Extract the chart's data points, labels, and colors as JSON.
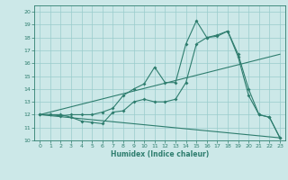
{
  "xlabel": "Humidex (Indice chaleur)",
  "xlim": [
    -0.5,
    23.5
  ],
  "ylim": [
    10,
    20.5
  ],
  "yticks": [
    10,
    11,
    12,
    13,
    14,
    15,
    16,
    17,
    18,
    19,
    20
  ],
  "xticks": [
    0,
    1,
    2,
    3,
    4,
    5,
    6,
    7,
    8,
    9,
    10,
    11,
    12,
    13,
    14,
    15,
    16,
    17,
    18,
    19,
    20,
    21,
    22,
    23
  ],
  "bg_color": "#cce8e8",
  "line_color": "#2e7d6e",
  "grid_color": "#99cccc",
  "line1_x": [
    0,
    1,
    2,
    3,
    4,
    5,
    6,
    7,
    8,
    9,
    10,
    11,
    12,
    13,
    14,
    15,
    16,
    17,
    18,
    19,
    20,
    21,
    22,
    23
  ],
  "line1_y": [
    12.0,
    12.0,
    12.0,
    11.8,
    11.5,
    11.4,
    11.3,
    12.2,
    12.3,
    13.0,
    13.2,
    13.0,
    13.0,
    13.2,
    14.5,
    17.5,
    18.0,
    18.2,
    18.5,
    16.7,
    14.0,
    12.0,
    11.8,
    10.2
  ],
  "line2_x": [
    0,
    1,
    2,
    3,
    4,
    5,
    6,
    7,
    8,
    9,
    10,
    11,
    12,
    13,
    14,
    15,
    16,
    17,
    18,
    19,
    20,
    21,
    22,
    23
  ],
  "line2_y": [
    12.0,
    12.0,
    11.9,
    12.0,
    12.0,
    12.0,
    12.2,
    12.5,
    13.5,
    14.0,
    14.4,
    15.7,
    14.5,
    14.5,
    17.5,
    19.3,
    18.0,
    18.1,
    18.5,
    16.5,
    13.5,
    12.0,
    11.8,
    10.2
  ],
  "line3_x": [
    0,
    23
  ],
  "line3_y": [
    12.0,
    16.7
  ],
  "line4_x": [
    0,
    23
  ],
  "line4_y": [
    12.0,
    10.2
  ]
}
